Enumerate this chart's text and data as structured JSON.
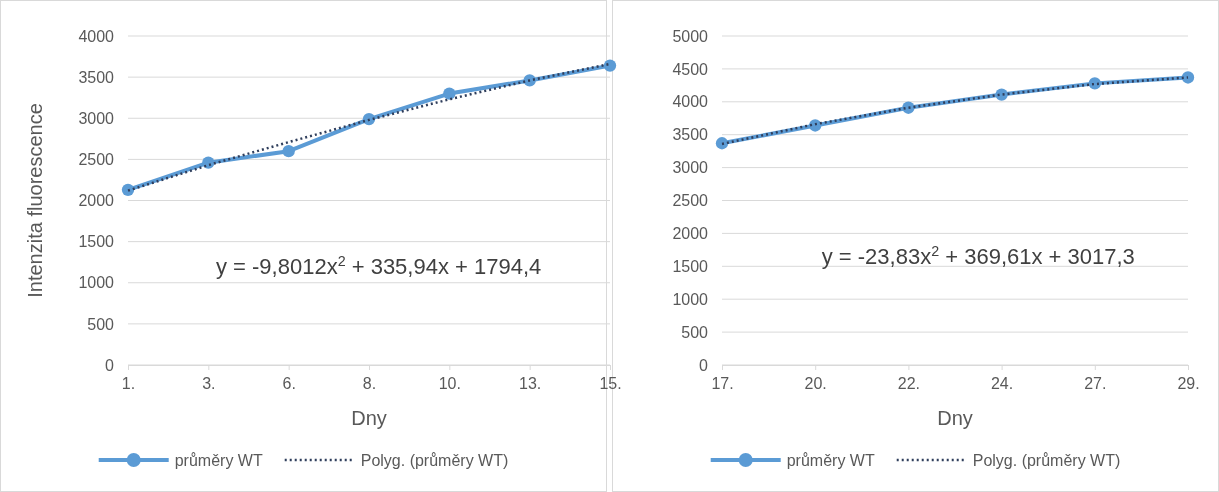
{
  "chart_data": [
    {
      "type": "line",
      "xlabel": "Dny",
      "ylabel": "Intenzita fluorescence",
      "categories": [
        "1.",
        "3.",
        "6.",
        "8.",
        "10.",
        "13.",
        "15."
      ],
      "ylim": [
        0,
        4000
      ],
      "yticks": [
        0,
        500,
        1000,
        1500,
        2000,
        2500,
        3000,
        3500,
        4000
      ],
      "grid": "y",
      "legend": "bottom",
      "annotations": [
        "y = -9,8012x$^{2}$ + 335,94x + 1794,4"
      ],
      "series": [
        {
          "name": "průměry WT",
          "color": "#5b9bd5",
          "values": [
            2130,
            2460,
            2600,
            2990,
            3300,
            3460,
            3640
          ],
          "marker": "circle",
          "line_style": "solid"
        },
        {
          "name": "Polyg. (průměry WT)",
          "type": "line",
          "color": "#2f3e5c",
          "values": [
            2120,
            2430,
            2710,
            2980,
            3230,
            3460,
            3660
          ],
          "marker": "none",
          "line_style": "dotted"
        }
      ]
    },
    {
      "type": "line",
      "xlabel": "Dny",
      "categories": [
        "17.",
        "20.",
        "22.",
        "24.",
        "27.",
        "29."
      ],
      "ylim": [
        0,
        5000
      ],
      "yticks": [
        0,
        500,
        1000,
        1500,
        2000,
        2500,
        3000,
        3500,
        4000,
        4500,
        5000
      ],
      "grid": "y",
      "legend": "bottom",
      "annotations": [
        "y = -23,83x$^{2}$ + 369,61x + 3017,3"
      ],
      "series": [
        {
          "name": "průměry WT",
          "color": "#5b9bd5",
          "values": [
            3370,
            3640,
            3910,
            4110,
            4280,
            4370
          ],
          "marker": "circle",
          "line_style": "solid"
        },
        {
          "name": "Polyg. (průměry WT)",
          "type": "line",
          "color": "#2f3e5c",
          "values": [
            3360,
            3660,
            3910,
            4110,
            4270,
            4370
          ],
          "marker": "none",
          "line_style": "dotted"
        }
      ]
    }
  ]
}
